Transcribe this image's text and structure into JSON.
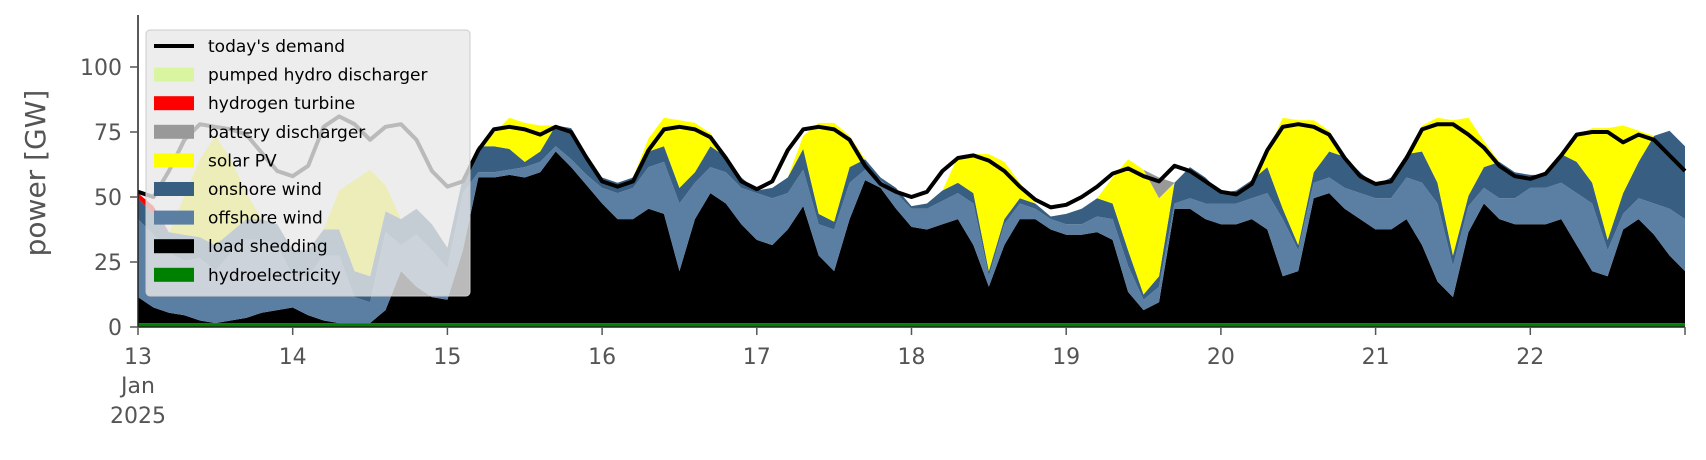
{
  "chart_data": {
    "type": "area",
    "ylabel": "power [GW]",
    "ylim": [
      0,
      120
    ],
    "xlim": [
      13,
      23
    ],
    "grid": false,
    "legend_position": "top-left",
    "yticks": [
      0,
      25,
      50,
      75,
      100
    ],
    "xticks": [
      {
        "value": 13,
        "label": "13"
      },
      {
        "value": 14,
        "label": "14"
      },
      {
        "value": 15,
        "label": "15"
      },
      {
        "value": 16,
        "label": "16"
      },
      {
        "value": 17,
        "label": "17"
      },
      {
        "value": 18,
        "label": "18"
      },
      {
        "value": 19,
        "label": "19"
      },
      {
        "value": 20,
        "label": "20"
      },
      {
        "value": 21,
        "label": "21"
      },
      {
        "value": 22,
        "label": "22"
      }
    ],
    "xtick_sublabels": [
      "Jan",
      "2025"
    ],
    "x": [
      13.0,
      13.1,
      13.2,
      13.3,
      13.4,
      13.5,
      13.6,
      13.7,
      13.8,
      13.9,
      14.0,
      14.1,
      14.2,
      14.3,
      14.4,
      14.5,
      14.6,
      14.7,
      14.8,
      14.9,
      15.0,
      15.1,
      15.2,
      15.3,
      15.4,
      15.5,
      15.6,
      15.7,
      15.8,
      15.9,
      16.0,
      16.1,
      16.2,
      16.3,
      16.4,
      16.5,
      16.6,
      16.7,
      16.8,
      16.9,
      17.0,
      17.1,
      17.2,
      17.3,
      17.4,
      17.5,
      17.6,
      17.7,
      17.8,
      17.9,
      18.0,
      18.1,
      18.2,
      18.3,
      18.4,
      18.5,
      18.6,
      18.7,
      18.8,
      18.9,
      19.0,
      19.1,
      19.2,
      19.3,
      19.4,
      19.5,
      19.6,
      19.7,
      19.8,
      19.9,
      20.0,
      20.1,
      20.2,
      20.3,
      20.4,
      20.5,
      20.6,
      20.7,
      20.8,
      20.9,
      21.0,
      21.1,
      21.2,
      21.3,
      21.4,
      21.5,
      21.6,
      21.7,
      21.8,
      21.9,
      22.0,
      22.1,
      22.2,
      22.3,
      22.4,
      22.5,
      22.6,
      22.7,
      22.8,
      22.9,
      23.0
    ],
    "demand": [
      52,
      50,
      60,
      72,
      78,
      77,
      76,
      74,
      67,
      60,
      58,
      62,
      77,
      81,
      78,
      72,
      77,
      78,
      72,
      60,
      54,
      56,
      68,
      76,
      77,
      76,
      74,
      77,
      75,
      65,
      56,
      54,
      56,
      68,
      76,
      77,
      76,
      73,
      65,
      56,
      53,
      56,
      68,
      76,
      77,
      76,
      72,
      62,
      55,
      52,
      50,
      52,
      60,
      65,
      66,
      64,
      60,
      54,
      49,
      46,
      47,
      50,
      54,
      59,
      61,
      58,
      56,
      62,
      60,
      56,
      52,
      51,
      55,
      68,
      77,
      78,
      77,
      74,
      65,
      58,
      55,
      56,
      65,
      76,
      78,
      78,
      74,
      69,
      62,
      58,
      57,
      59,
      66,
      74,
      75,
      75,
      71,
      74,
      72,
      66,
      60
    ],
    "series": [
      {
        "name": "hydroelectricity",
        "color": "#008000",
        "values": [
          1.5,
          1.5,
          1.5,
          1.5,
          1.5,
          1.5,
          1.5,
          1.5,
          1.5,
          1.5,
          1.5,
          1.5,
          1.5,
          1.5,
          1.5,
          1.5,
          1.5,
          1.5,
          1.5,
          1.5,
          1.5,
          1.5,
          1.5,
          1.5,
          1.5,
          1.5,
          1.5,
          1.5,
          1.5,
          1.5,
          1.5,
          1.5,
          1.5,
          1.5,
          1.5,
          1.5,
          1.5,
          1.5,
          1.5,
          1.5,
          1.5,
          1.5,
          1.5,
          1.5,
          1.5,
          1.5,
          1.5,
          1.5,
          1.5,
          1.5,
          1.5,
          1.5,
          1.5,
          1.5,
          1.5,
          1.5,
          1.5,
          1.5,
          1.5,
          1.5,
          1.5,
          1.5,
          1.5,
          1.5,
          1.5,
          1.5,
          1.5,
          1.5,
          1.5,
          1.5,
          1.5,
          1.5,
          1.5,
          1.5,
          1.5,
          1.5,
          1.5,
          1.5,
          1.5,
          1.5,
          1.5,
          1.5,
          1.5,
          1.5,
          1.5,
          1.5,
          1.5,
          1.5,
          1.5,
          1.5,
          1.5,
          1.5,
          1.5,
          1.5,
          1.5,
          1.5,
          1.5,
          1.5,
          1.5,
          1.5,
          1.5
        ]
      },
      {
        "name": "load shedding",
        "color": "#000000",
        "values": [
          10,
          6,
          4,
          3,
          1,
          0,
          1,
          2,
          4,
          5,
          6,
          3,
          1,
          0,
          0,
          0,
          5,
          20,
          14,
          10,
          9,
          28,
          56,
          56,
          57,
          56,
          58,
          66,
          60,
          53,
          46,
          40,
          40,
          44,
          42,
          20,
          40,
          50,
          46,
          38,
          32,
          30,
          36,
          45,
          26,
          20,
          40,
          55,
          52,
          44,
          37,
          36,
          38,
          40,
          30,
          14,
          30,
          40,
          40,
          36,
          34,
          34,
          35,
          32,
          12,
          5,
          8,
          44,
          44,
          40,
          38,
          38,
          40,
          36,
          18,
          20,
          48,
          50,
          44,
          40,
          36,
          36,
          40,
          30,
          16,
          10,
          35,
          46,
          40,
          38,
          38,
          38,
          40,
          30,
          20,
          18,
          36,
          40,
          34,
          26,
          20
        ]
      },
      {
        "name": "offshore wind",
        "color": "#5b7fa3",
        "values": [
          30,
          28,
          23,
          21,
          24,
          20,
          26,
          30,
          28,
          25,
          12,
          15,
          25,
          26,
          10,
          8,
          30,
          10,
          20,
          18,
          12,
          22,
          2,
          2,
          2,
          4,
          4,
          2,
          3,
          4,
          6,
          10,
          12,
          16,
          20,
          26,
          14,
          10,
          12,
          14,
          18,
          18,
          14,
          14,
          12,
          16,
          14,
          4,
          3,
          6,
          7,
          8,
          9,
          10,
          16,
          4,
          8,
          6,
          4,
          4,
          4,
          4,
          6,
          8,
          10,
          4,
          6,
          2,
          4,
          6,
          8,
          8,
          8,
          14,
          22,
          8,
          6,
          6,
          8,
          10,
          12,
          12,
          16,
          24,
          30,
          12,
          10,
          6,
          8,
          10,
          14,
          14,
          14,
          20,
          26,
          10,
          6,
          8,
          12,
          18,
          20
        ]
      },
      {
        "name": "onshore wind",
        "color": "#385f82",
        "values": [
          8,
          8,
          8,
          10,
          8,
          10,
          8,
          8,
          8,
          8,
          10,
          10,
          10,
          10,
          10,
          10,
          8,
          10,
          10,
          10,
          8,
          6,
          10,
          10,
          8,
          2,
          4,
          8,
          12,
          8,
          4,
          4,
          4,
          6,
          6,
          6,
          4,
          8,
          6,
          4,
          1,
          4,
          6,
          8,
          4,
          3,
          6,
          4,
          1,
          2,
          1,
          2,
          4,
          4,
          4,
          2,
          2,
          2,
          2,
          1,
          4,
          6,
          7,
          6,
          6,
          2,
          4,
          8,
          12,
          10,
          4,
          5,
          7,
          10,
          4,
          2,
          4,
          10,
          12,
          8,
          5,
          8,
          9,
          12,
          8,
          4,
          4,
          8,
          14,
          10,
          5,
          5,
          11,
          12,
          8,
          4,
          8,
          14,
          26,
          30,
          28
        ]
      },
      {
        "name": "solar PV",
        "color": "#ffff00",
        "values": [
          0,
          0,
          0,
          15,
          30,
          42,
          28,
          10,
          0,
          0,
          0,
          0,
          0,
          15,
          35,
          41,
          10,
          0,
          0,
          0,
          0,
          0,
          0,
          5,
          12,
          15,
          10,
          0,
          0,
          0,
          0,
          0,
          0,
          5,
          11,
          26,
          19,
          5,
          0,
          0,
          0,
          0,
          0,
          5,
          35,
          38,
          12,
          0,
          0,
          0,
          0,
          0,
          0,
          10,
          15,
          45,
          22,
          6,
          0,
          0,
          0,
          0,
          0,
          10,
          35,
          48,
          30,
          0,
          0,
          0,
          0,
          0,
          0,
          6,
          35,
          48,
          20,
          8,
          0,
          0,
          0,
          0,
          0,
          10,
          25,
          52,
          30,
          10,
          0,
          0,
          0,
          0,
          0,
          10,
          21,
          43,
          26,
          12,
          0,
          0,
          0
        ]
      },
      {
        "name": "battery discharger",
        "color": "#999999",
        "values": [
          0,
          0,
          0,
          0,
          0,
          0,
          0,
          0,
          0,
          0,
          0,
          0,
          0,
          0,
          0,
          0,
          0,
          0,
          0,
          0,
          0,
          0,
          0,
          0,
          0,
          0,
          0,
          0,
          0,
          0,
          0,
          0,
          0,
          0,
          0,
          0,
          0,
          0,
          0,
          0,
          0,
          0,
          0,
          0,
          0,
          0,
          0,
          0,
          0,
          0,
          0,
          0,
          0,
          0,
          0,
          0,
          0,
          0,
          0,
          0,
          0,
          0,
          0,
          0,
          0,
          0,
          8,
          0,
          0,
          0,
          0,
          0,
          0,
          0,
          0,
          0,
          0,
          0,
          0,
          0,
          0,
          0,
          0,
          0,
          0,
          0,
          0,
          0,
          0,
          0,
          0,
          0,
          0,
          0,
          0,
          0,
          0,
          0,
          0,
          0,
          0
        ]
      },
      {
        "name": "hydrogen turbine",
        "color": "#ff0000",
        "values": [
          2,
          3,
          0,
          0,
          0,
          0,
          0,
          0,
          0,
          0,
          0,
          0,
          0,
          0,
          0,
          0,
          0,
          0,
          0,
          0,
          0,
          0,
          0,
          0,
          0,
          0,
          0,
          0,
          0,
          0,
          0,
          0,
          0,
          0,
          0,
          0,
          0,
          0,
          0,
          0,
          0,
          0,
          0,
          0,
          0,
          0,
          0,
          0,
          0,
          0,
          0,
          0,
          0,
          0,
          0,
          0,
          0,
          0,
          0,
          0,
          0,
          0,
          0,
          0,
          0,
          0,
          0,
          0,
          0,
          0,
          0,
          0,
          0,
          0,
          0,
          0,
          0,
          0,
          0,
          0,
          0,
          0,
          0,
          0,
          0,
          0,
          0,
          0,
          0,
          0,
          0,
          0,
          0,
          0,
          0,
          0,
          0,
          0,
          0,
          0,
          0
        ]
      },
      {
        "name": "pumped hydro discharger",
        "color": "#d9f5a0",
        "values": [
          0,
          0,
          0,
          0,
          0,
          0,
          0,
          0,
          0,
          0,
          0,
          0,
          0,
          0,
          0,
          0,
          0,
          0,
          0,
          0,
          0,
          0,
          0,
          0,
          0,
          0,
          0,
          0,
          0,
          0,
          0,
          0,
          0,
          0,
          0,
          0,
          0,
          0,
          0,
          0,
          0,
          0,
          0,
          0,
          0,
          0,
          0,
          0,
          0,
          0,
          0,
          0,
          0,
          0,
          0,
          0,
          0,
          0,
          0,
          0,
          0,
          0,
          0,
          0,
          0,
          0,
          0,
          0,
          0,
          0,
          0,
          0,
          0,
          0,
          0,
          0,
          0,
          0,
          0,
          0,
          0,
          0,
          0,
          0,
          0,
          0,
          0,
          0,
          0,
          0,
          0,
          0,
          0,
          0,
          0,
          0,
          0,
          0,
          0,
          0,
          0
        ]
      }
    ],
    "legend": [
      {
        "label": "today's demand",
        "color": "#000000",
        "kind": "line"
      },
      {
        "label": "pumped hydro discharger",
        "color": "#d9f5a0",
        "kind": "patch"
      },
      {
        "label": "hydrogen turbine",
        "color": "#ff0000",
        "kind": "patch"
      },
      {
        "label": "battery discharger",
        "color": "#999999",
        "kind": "patch"
      },
      {
        "label": "solar PV",
        "color": "#ffff00",
        "kind": "patch"
      },
      {
        "label": "onshore wind",
        "color": "#385f82",
        "kind": "patch"
      },
      {
        "label": "offshore wind",
        "color": "#5b7fa3",
        "kind": "patch"
      },
      {
        "label": "load shedding",
        "color": "#000000",
        "kind": "patch"
      },
      {
        "label": "hydroelectricity",
        "color": "#008000",
        "kind": "patch"
      }
    ]
  }
}
